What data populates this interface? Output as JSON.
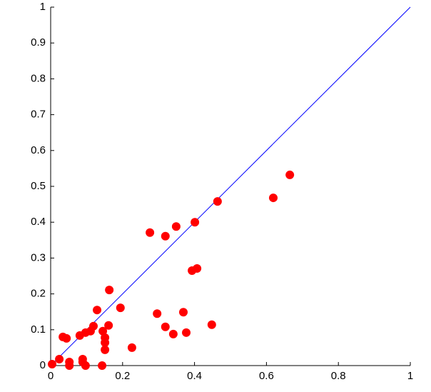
{
  "chart_data": {
    "type": "scatter",
    "x": [
      0.004,
      0.024,
      0.034,
      0.044,
      0.052,
      0.052,
      0.081,
      0.089,
      0.089,
      0.097,
      0.097,
      0.111,
      0.119,
      0.129,
      0.143,
      0.145,
      0.151,
      0.151,
      0.151,
      0.161,
      0.163,
      0.194,
      0.226,
      0.276,
      0.296,
      0.319,
      0.319,
      0.341,
      0.349,
      0.369,
      0.377,
      0.393,
      0.407,
      0.401,
      0.448,
      0.464,
      0.619,
      0.665
    ],
    "series": [
      {
        "color": "#ff0000",
        "values": [
          0.004,
          0.018,
          0.08,
          0.076,
          0.01,
          0.0,
          0.084,
          0.018,
          0.01,
          0.0,
          0.092,
          0.096,
          0.11,
          0.155,
          0.0,
          0.096,
          0.078,
          0.064,
          0.044,
          0.112,
          0.211,
          0.161,
          0.05,
          0.371,
          0.145,
          0.361,
          0.108,
          0.088,
          0.388,
          0.149,
          0.092,
          0.265,
          0.271,
          0.4,
          0.114,
          0.458,
          0.468,
          0.532
        ]
      }
    ],
    "diagonal_color": "#0000ff",
    "xlim": [
      0,
      1
    ],
    "xticks": [
      0,
      0.2,
      0.4,
      0.6,
      0.8,
      1
    ],
    "ylim": [
      0,
      1
    ],
    "yticks": [
      0,
      0.1,
      0.2,
      0.3,
      0.4,
      0.5,
      0.6,
      0.7,
      0.8,
      0.9,
      1
    ]
  }
}
